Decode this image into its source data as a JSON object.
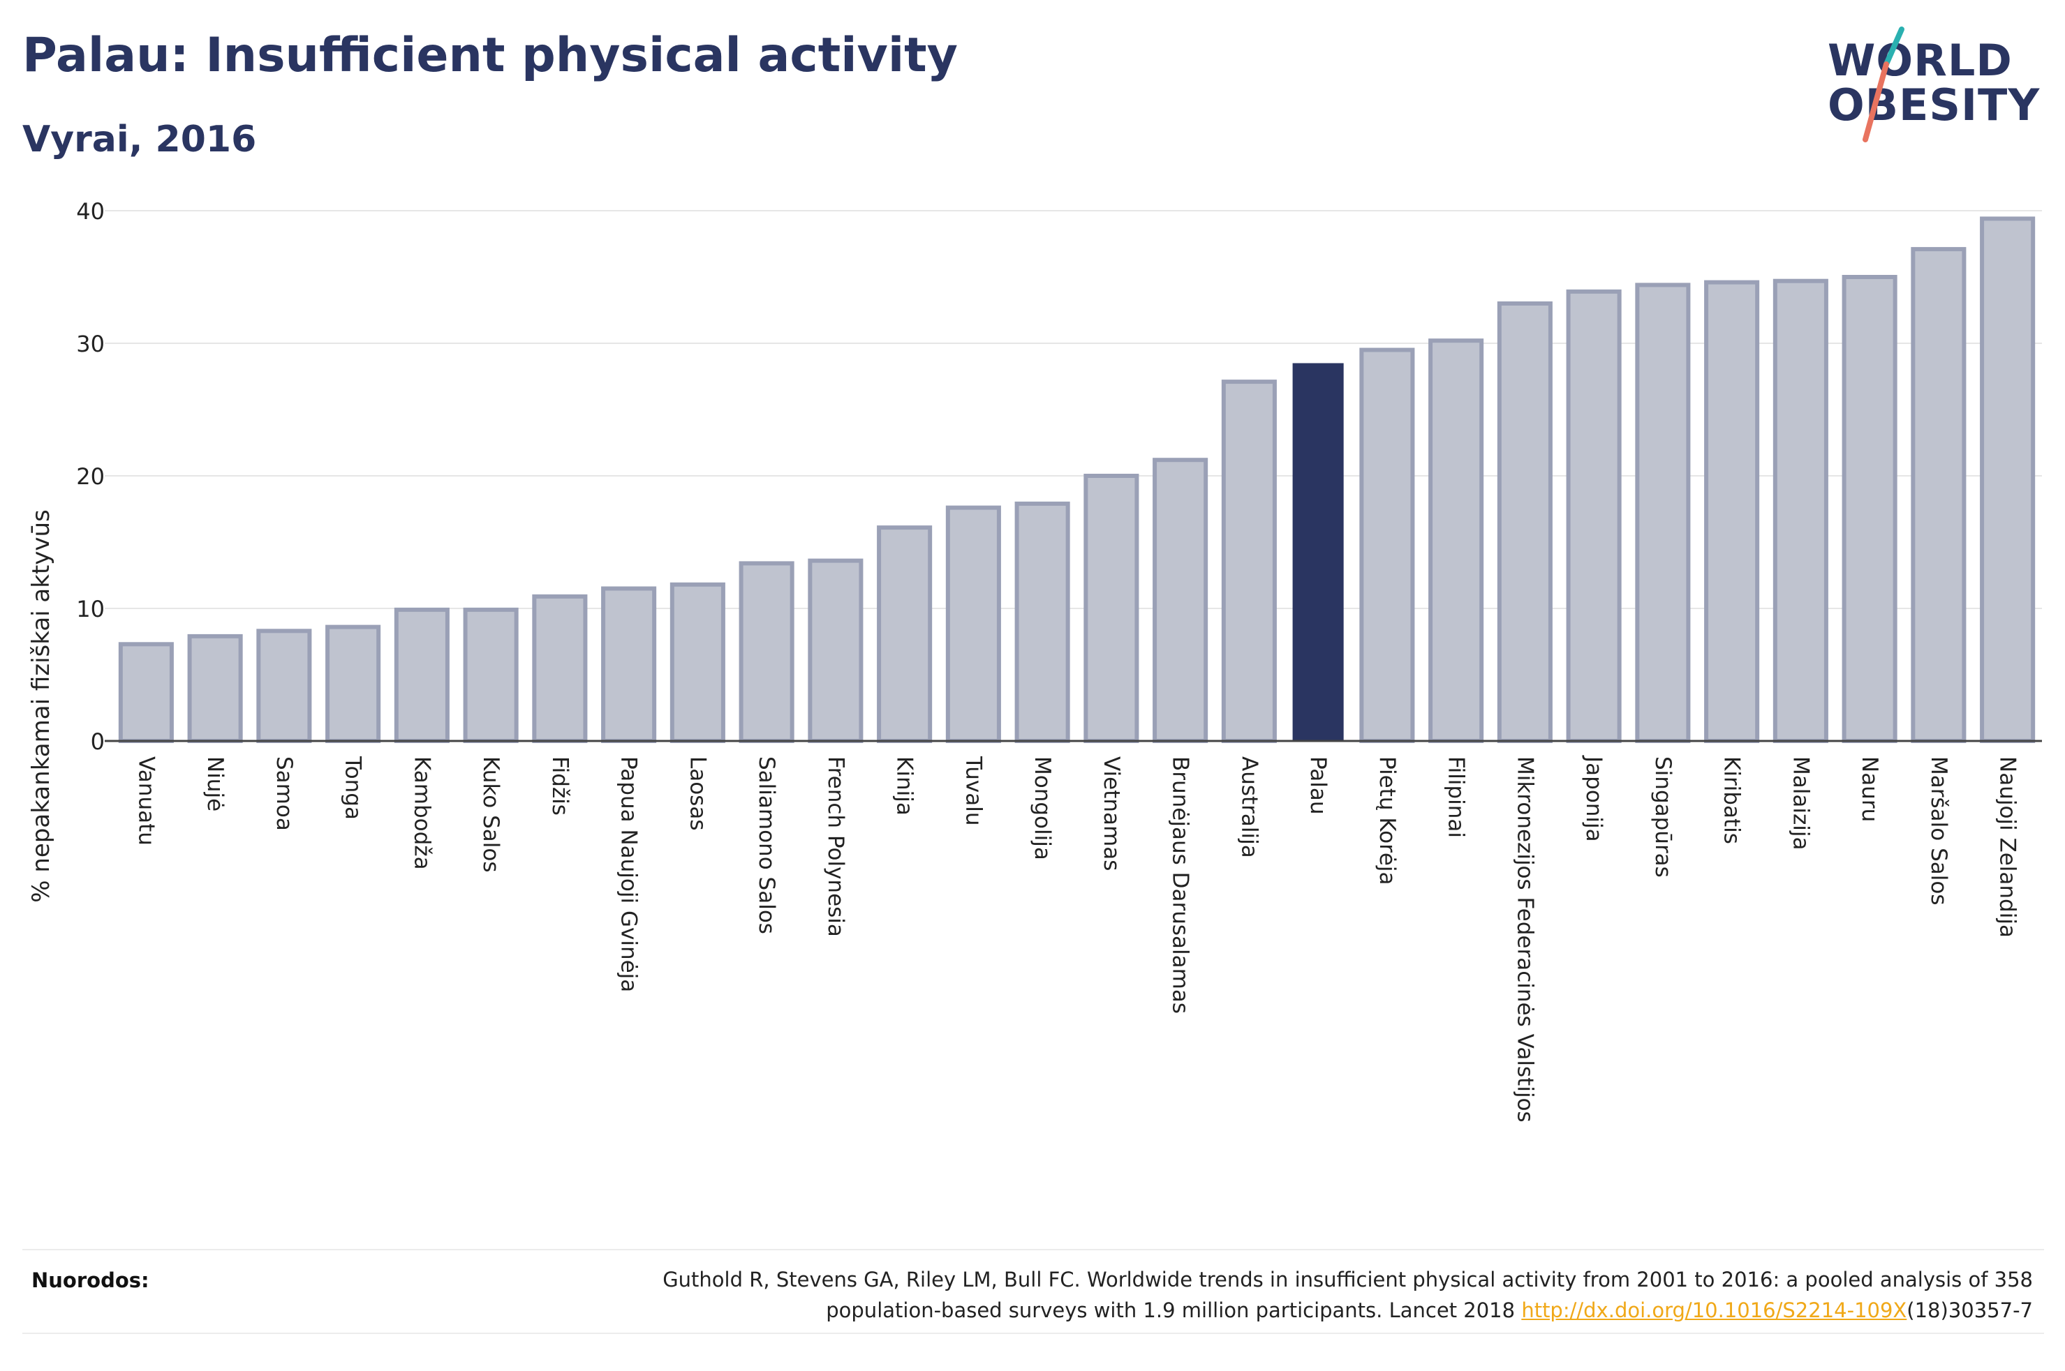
{
  "header": {
    "title": "Palau: Insufficient physical activity",
    "subtitle": "Vyrai, 2016"
  },
  "logo": {
    "line1": "WORLD",
    "line2": "OBESITY"
  },
  "colors": {
    "bar": "#bfc3cf",
    "bar_outline": "#9aa0b6",
    "highlight": "#2a3561",
    "grid": "#e6e6e6",
    "text": "#2a3561"
  },
  "chart_data": {
    "type": "bar",
    "title": "Palau: Insufficient physical activity",
    "subtitle": "Vyrai, 2016",
    "xlabel": "",
    "ylabel": "% nepakankamai fiziškai aktyvūs",
    "ylim": [
      0,
      40
    ],
    "yticks": [
      0,
      10,
      20,
      30,
      40
    ],
    "grid": true,
    "highlight": "Palau",
    "categories": [
      "Vanuatu",
      "Niujė",
      "Samoa",
      "Tonga",
      "Kambodža",
      "Kuko Salos",
      "Fidžis",
      "Papua Naujoji Gvinėja",
      "Laosas",
      "Saliamono Salos",
      "French Polynesia",
      "Kinija",
      "Tuvalu",
      "Mongolija",
      "Vietnamas",
      "Brunėjaus Darusalamas",
      "Australija",
      "Palau",
      "Pietų Korėja",
      "Filipinai",
      "Mikronezijos Federacinės Valstijos",
      "Japonija",
      "Singapūras",
      "Kiribatis",
      "Malaizija",
      "Nauru",
      "Maršalo Salos",
      "Naujoji Zelandija"
    ],
    "values": [
      7.3,
      7.9,
      8.3,
      8.6,
      9.9,
      9.9,
      10.9,
      11.5,
      11.8,
      13.4,
      13.6,
      16.1,
      17.6,
      17.9,
      20.0,
      21.2,
      27.1,
      28.5,
      29.5,
      30.2,
      33.0,
      33.9,
      34.4,
      34.6,
      34.7,
      35.0,
      37.1,
      39.4
    ]
  },
  "footer": {
    "label": "Nuorodos:",
    "line1": "Guthold R, Stevens GA, Riley LM, Bull FC. Worldwide trends in insufficient physical activity from 2001 to 2016: a pooled analysis of 358",
    "line2_pre": "population-based surveys with 1.9 million participants. Lancet 2018 ",
    "link": "http://dx.doi.org/10.1016/S2214-109X",
    "line2_post": "(18)30357-7"
  }
}
